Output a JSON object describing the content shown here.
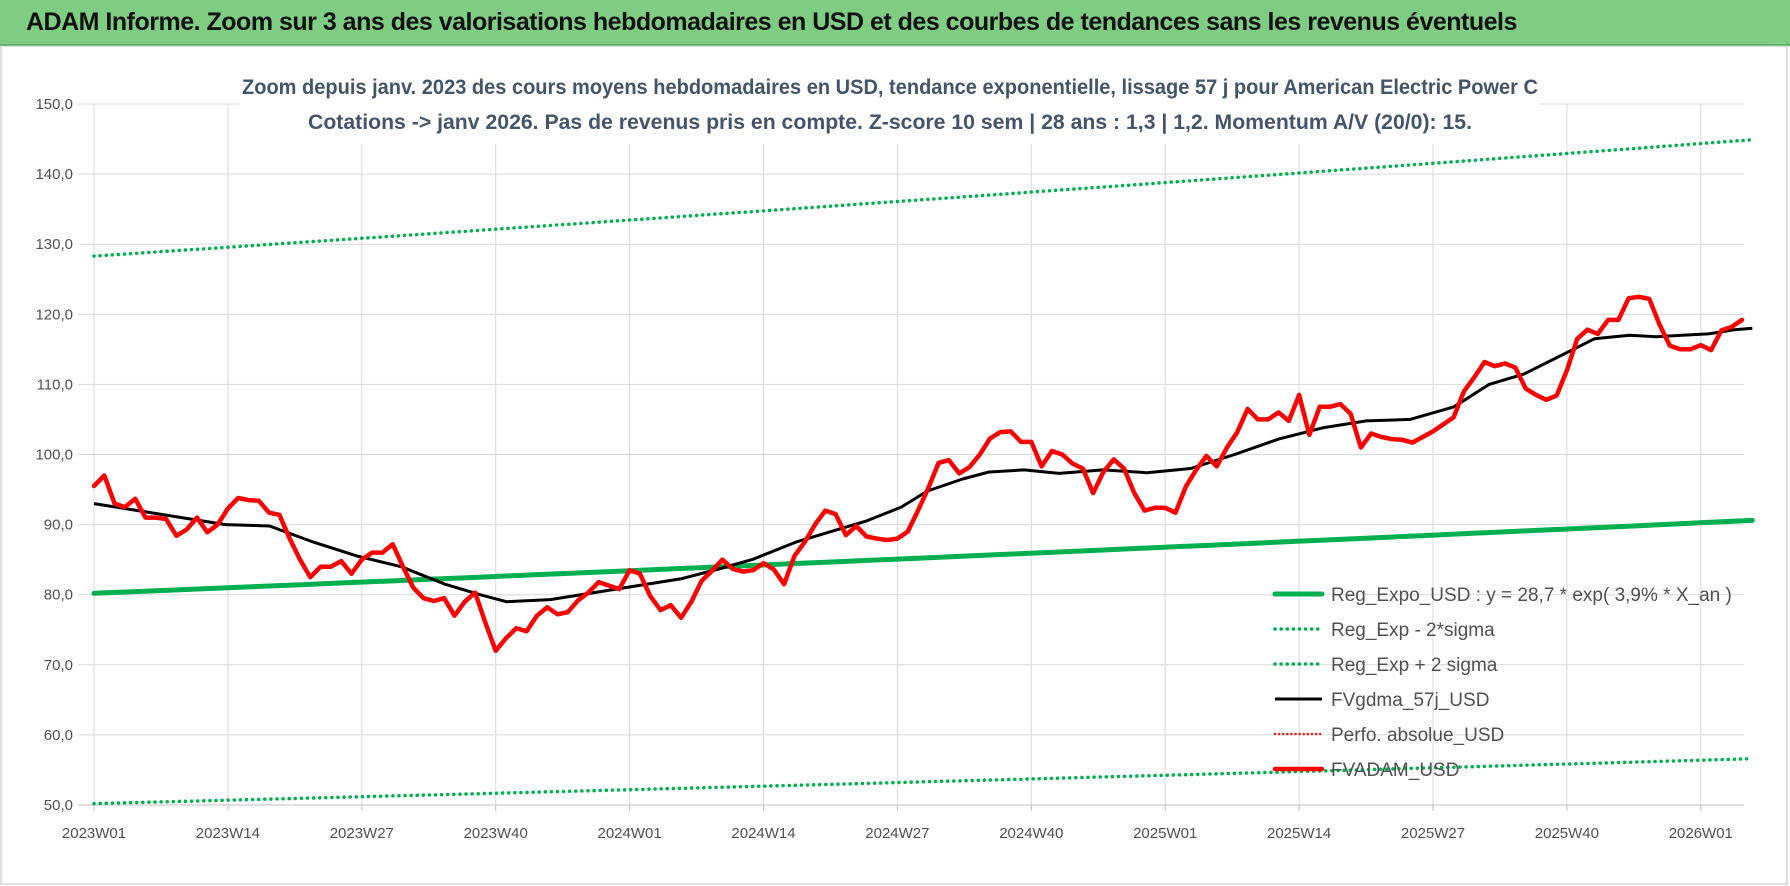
{
  "banner": {
    "title": "ADAM Informe. Zoom sur 3 ans des valorisations hebdomadaires en USD et des courbes de tendances sans les revenus éventuels"
  },
  "chart_data": {
    "type": "line",
    "title_lines": [
      "Zoom depuis janv. 2023 des cours moyens hebdomadaires en USD, tendance exponentielle, lissage 57 j pour American Electric Power C",
      "Cotations -> janv 2026. Pas de revenus pris en compte. Z-score 10 sem  | 28 ans : 1,3  | 1,2. Momentum A/V (20/0): 15."
    ],
    "ylim": [
      50,
      150
    ],
    "y_ticks": [
      "50,0",
      "60,0",
      "70,0",
      "80,0",
      "90,0",
      "100,0",
      "110,0",
      "120,0",
      "130,0",
      "140,0",
      "150,0"
    ],
    "x_tick_labels": [
      "2023W01",
      "2023W14",
      "2023W27",
      "2023W40",
      "2024W01",
      "2024W14",
      "2024W27",
      "2024W40",
      "2025W01",
      "2025W14",
      "2025W27",
      "2025W40",
      "2026W01"
    ],
    "x_tick_index": [
      0,
      13,
      26,
      39,
      52,
      65,
      78,
      91,
      104,
      117,
      130,
      143,
      156
    ],
    "n_weeks": 162,
    "grid": true,
    "legend_position": "bottom-right",
    "colors": {
      "reg_expo": "#00b050",
      "sigma": "#00b050",
      "fvgdma": "#000000",
      "perfo": "#e02020",
      "fvadam": "#ff0000",
      "grid": "#d9d9d9"
    },
    "series": [
      {
        "name": "Reg_Expo_USD : y = 28,7 * exp( 3,9% *  X_an )",
        "key": "reg_expo",
        "style": "thick-solid",
        "values": [
          80.2,
          90.6
        ],
        "interp": "exponential"
      },
      {
        "name": "Reg_Exp - 2*sigma",
        "key": "minus",
        "style": "dotted",
        "values": [
          50.2,
          56.6
        ],
        "interp": "exponential"
      },
      {
        "name": "Reg_Exp + 2 sigma",
        "key": "plus",
        "style": "dotted",
        "values": [
          128.3,
          144.9
        ],
        "interp": "exponential"
      },
      {
        "name": "FVgdma_57j_USD",
        "key": "fvgdma",
        "style": "solid",
        "points": [
          [
            0,
            93.0
          ],
          [
            5,
            92.0
          ],
          [
            10,
            91.0
          ],
          [
            15,
            90.0
          ],
          [
            20,
            89.8
          ],
          [
            25,
            87.5
          ],
          [
            30,
            85.5
          ],
          [
            35,
            84.0
          ],
          [
            40,
            81.5
          ],
          [
            44,
            80.0
          ],
          [
            47,
            79.0
          ],
          [
            52,
            79.3
          ],
          [
            57,
            80.3
          ],
          [
            62,
            81.3
          ],
          [
            67,
            82.3
          ],
          [
            71,
            83.6
          ],
          [
            75,
            85.0
          ],
          [
            80,
            87.5
          ],
          [
            84,
            89.0
          ],
          [
            88,
            90.5
          ],
          [
            92,
            92.5
          ],
          [
            95,
            94.8
          ],
          [
            99,
            96.5
          ],
          [
            102,
            97.5
          ],
          [
            106,
            97.8
          ],
          [
            110,
            97.3
          ],
          [
            115,
            97.8
          ],
          [
            120,
            97.4
          ],
          [
            125,
            98.0
          ],
          [
            130,
            100.0
          ],
          [
            135,
            102.2
          ],
          [
            140,
            103.8
          ],
          [
            145,
            104.8
          ],
          [
            150,
            105.0
          ],
          [
            155,
            106.8
          ],
          [
            159,
            110.0
          ],
          [
            163,
            111.5
          ],
          [
            167,
            114.0
          ],
          [
            171,
            116.5
          ],
          [
            175,
            117.0
          ],
          [
            178,
            116.8
          ],
          [
            181,
            117.0
          ],
          [
            184,
            117.2
          ],
          [
            187,
            117.8
          ],
          [
            189,
            118.0
          ]
        ]
      },
      {
        "name": "Perfo. absolue_USD",
        "key": "perfo",
        "style": "dotted",
        "points": []
      },
      {
        "name": "FVADAM_USD",
        "key": "fvadam",
        "style": "thick-solid",
        "points": [
          [
            0,
            95.5
          ],
          [
            1,
            97.0
          ],
          [
            2,
            93.0
          ],
          [
            3,
            92.5
          ],
          [
            4,
            93.7
          ],
          [
            5,
            91.0
          ],
          [
            6,
            91.0
          ],
          [
            7,
            90.8
          ],
          [
            8,
            88.4
          ],
          [
            9,
            89.3
          ],
          [
            10,
            91.0
          ],
          [
            11,
            88.9
          ],
          [
            12,
            90.0
          ],
          [
            13,
            92.3
          ],
          [
            14,
            93.8
          ],
          [
            15,
            93.5
          ],
          [
            16,
            93.4
          ],
          [
            17,
            91.7
          ],
          [
            18,
            91.4
          ],
          [
            19,
            88.0
          ],
          [
            20,
            85.0
          ],
          [
            21,
            82.5
          ],
          [
            22,
            84.0
          ],
          [
            23,
            84.0
          ],
          [
            24,
            84.8
          ],
          [
            25,
            83.0
          ],
          [
            26,
            85.0
          ],
          [
            27,
            86.0
          ],
          [
            28,
            86.0
          ],
          [
            29,
            87.2
          ],
          [
            30,
            84.0
          ],
          [
            31,
            81.0
          ],
          [
            32,
            79.5
          ],
          [
            33,
            79.1
          ],
          [
            34,
            79.5
          ],
          [
            35,
            77.0
          ],
          [
            36,
            79.0
          ],
          [
            37,
            80.3
          ],
          [
            38,
            76.0
          ],
          [
            39,
            72.0
          ],
          [
            40,
            73.8
          ],
          [
            41,
            75.2
          ],
          [
            42,
            74.8
          ],
          [
            43,
            77.0
          ],
          [
            44,
            78.2
          ],
          [
            45,
            77.2
          ],
          [
            46,
            77.5
          ],
          [
            47,
            79.2
          ],
          [
            48,
            80.3
          ],
          [
            49,
            81.8
          ],
          [
            50,
            81.3
          ],
          [
            51,
            80.8
          ],
          [
            52,
            83.5
          ],
          [
            53,
            83.0
          ],
          [
            54,
            79.8
          ],
          [
            55,
            77.8
          ],
          [
            56,
            78.5
          ],
          [
            57,
            76.7
          ],
          [
            58,
            79.0
          ],
          [
            59,
            82.0
          ],
          [
            60,
            83.4
          ],
          [
            61,
            85.0
          ],
          [
            62,
            83.7
          ],
          [
            63,
            83.3
          ],
          [
            64,
            83.5
          ],
          [
            65,
            84.5
          ],
          [
            66,
            83.6
          ],
          [
            67,
            81.5
          ],
          [
            68,
            85.5
          ],
          [
            69,
            87.5
          ],
          [
            70,
            90.0
          ],
          [
            71,
            92.0
          ],
          [
            72,
            91.5
          ],
          [
            73,
            88.5
          ],
          [
            74,
            89.8
          ],
          [
            75,
            88.3
          ],
          [
            76,
            88.0
          ],
          [
            77,
            87.8
          ],
          [
            78,
            88.0
          ],
          [
            79,
            89.0
          ],
          [
            80,
            92.0
          ],
          [
            81,
            95.2
          ],
          [
            82,
            98.8
          ],
          [
            83,
            99.2
          ],
          [
            84,
            97.3
          ],
          [
            85,
            98.2
          ],
          [
            86,
            100.0
          ],
          [
            87,
            102.3
          ],
          [
            88,
            103.2
          ],
          [
            89,
            103.3
          ],
          [
            90,
            101.8
          ],
          [
            91,
            101.8
          ],
          [
            92,
            98.3
          ],
          [
            93,
            100.5
          ],
          [
            94,
            100.0
          ],
          [
            95,
            98.7
          ],
          [
            96,
            98.0
          ],
          [
            97,
            94.5
          ],
          [
            98,
            97.5
          ],
          [
            99,
            99.3
          ],
          [
            100,
            98.0
          ],
          [
            101,
            94.5
          ],
          [
            102,
            92.0
          ],
          [
            103,
            92.4
          ],
          [
            104,
            92.4
          ],
          [
            105,
            91.7
          ],
          [
            106,
            95.4
          ],
          [
            107,
            97.8
          ],
          [
            108,
            99.8
          ],
          [
            109,
            98.3
          ],
          [
            110,
            101.0
          ],
          [
            111,
            103.2
          ],
          [
            112,
            106.5
          ],
          [
            113,
            105.0
          ],
          [
            114,
            105.0
          ],
          [
            115,
            106.0
          ],
          [
            116,
            104.8
          ],
          [
            117,
            108.5
          ],
          [
            118,
            102.8
          ],
          [
            119,
            106.8
          ],
          [
            120,
            106.8
          ],
          [
            121,
            107.2
          ],
          [
            122,
            105.8
          ],
          [
            123,
            101.0
          ],
          [
            124,
            103.0
          ],
          [
            125,
            102.5
          ],
          [
            126,
            102.2
          ],
          [
            127,
            102.1
          ],
          [
            128,
            101.7
          ],
          [
            129,
            102.5
          ],
          [
            130,
            103.3
          ],
          [
            131,
            104.3
          ],
          [
            132,
            105.3
          ],
          [
            133,
            109.0
          ],
          [
            134,
            111.0
          ],
          [
            135,
            113.2
          ],
          [
            136,
            112.6
          ],
          [
            137,
            113.0
          ],
          [
            138,
            112.4
          ],
          [
            139,
            109.4
          ],
          [
            140,
            108.5
          ],
          [
            141,
            107.8
          ],
          [
            142,
            108.4
          ],
          [
            143,
            112.0
          ],
          [
            144,
            116.5
          ],
          [
            145,
            117.8
          ],
          [
            146,
            117.2
          ],
          [
            147,
            119.2
          ],
          [
            148,
            119.2
          ],
          [
            149,
            122.3
          ],
          [
            150,
            122.5
          ],
          [
            151,
            122.2
          ],
          [
            152,
            118.5
          ],
          [
            153,
            115.5
          ],
          [
            154,
            115.0
          ],
          [
            155,
            115.0
          ],
          [
            156,
            115.6
          ],
          [
            157,
            114.9
          ],
          [
            158,
            117.7
          ],
          [
            159,
            118.2
          ],
          [
            160,
            119.2
          ]
        ]
      }
    ]
  }
}
